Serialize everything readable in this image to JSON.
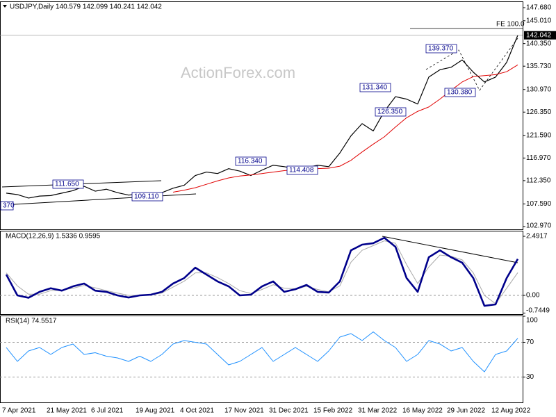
{
  "chart_data": [
    {
      "type": "line",
      "title": "USDJPY,Daily 140.579 142.099 140.241 142.042",
      "categories": [
        null,
        "7 Apr 2021",
        null,
        null,
        null,
        "21 May 2021",
        null,
        null,
        null,
        "6 Jul 2021",
        null,
        null,
        null,
        "19 Aug 2021",
        null,
        null,
        null,
        "4 Oct 2021",
        null,
        null,
        null,
        "17 Nov 2021",
        null,
        null,
        null,
        "31 Dec 2021",
        null,
        null,
        null,
        "15 Feb 2022",
        null,
        null,
        null,
        "31 Mar 2022",
        null,
        null,
        null,
        "16 May 2022",
        null,
        null,
        null,
        "29 Jun 2022",
        null,
        null,
        null,
        "12 Aug 2022",
        null
      ],
      "series": [
        {
          "color": "#000000",
          "values": [
            109.8,
            109.5,
            108.8,
            109.2,
            109.3,
            109.8,
            110.3,
            111.2,
            110.2,
            110.6,
            109.9,
            109.4,
            109.6,
            109.8,
            109.9,
            110.8,
            111.4,
            113.4,
            114.1,
            113.8,
            114.8,
            114.3,
            113.4,
            114.5,
            115.5,
            115.2,
            114.8,
            115.0,
            115.5,
            115.2,
            118.0,
            121.5,
            124.0,
            122.5,
            126.5,
            129.5,
            129.0,
            128.0,
            133.5,
            135.0,
            135.5,
            137.0,
            134.5,
            132.5,
            133.5,
            136.5,
            142.042
          ]
        },
        {
          "color": "#e00000",
          "values": [
            null,
            null,
            null,
            null,
            null,
            null,
            null,
            null,
            null,
            null,
            null,
            null,
            null,
            null,
            null,
            110.0,
            110.4,
            110.9,
            111.6,
            112.3,
            112.9,
            113.3,
            113.5,
            113.8,
            114.1,
            114.4,
            114.6,
            114.7,
            114.8,
            114.9,
            115.3,
            116.5,
            118.2,
            119.8,
            121.3,
            123.3,
            125.2,
            126.5,
            127.4,
            129.0,
            130.8,
            132.5,
            133.6,
            133.8,
            134.0,
            134.6,
            136.0
          ]
        }
      ],
      "ylim": [
        102.4,
        148.82
      ],
      "yticks": [
        {
          "value": 147.68,
          "label": "147.680"
        },
        {
          "value": 145.01,
          "label": "145.010"
        },
        {
          "value": 140.35,
          "label": "140.350"
        },
        {
          "value": 135.73,
          "label": "135.730"
        },
        {
          "value": 130.97,
          "label": "130.970"
        },
        {
          "value": 126.35,
          "label": "126.350"
        },
        {
          "value": 121.59,
          "label": "121.590"
        },
        {
          "value": 116.97,
          "label": "116.970"
        },
        {
          "value": 112.35,
          "label": "112.350"
        },
        {
          "value": 107.59,
          "label": "107.590"
        },
        {
          "value": 102.97,
          "label": "102.970"
        }
      ],
      "last_price": 142.042,
      "annotations": [
        "139.370",
        "131.340",
        "126.350",
        "130.380",
        "116.340",
        "111.650",
        "109.110",
        "114.408",
        "370"
      ],
      "fe_label": "FE 100.0",
      "watermark": "ActionForex.com"
    },
    {
      "type": "line",
      "title": "MACD(12,26,9) 1.5336 0.9595",
      "series": [
        {
          "color": "#a9a9a9",
          "values": [
            0.95,
            0.4,
            0.05,
            0.05,
            0.2,
            0.22,
            0.3,
            0.42,
            0.32,
            0.2,
            0.1,
            0,
            0,
            0.02,
            0.1,
            0.35,
            0.6,
            0.95,
            0.95,
            0.75,
            0.5,
            0.2,
            0.08,
            0.25,
            0.45,
            0.3,
            0.28,
            0.38,
            0.25,
            0.15,
            0.4,
            1.4,
            1.9,
            2.1,
            2.3,
            2.2,
            1.3,
            0.5,
            1.2,
            1.7,
            1.65,
            1.5,
            0.95,
            0.0,
            -0.35,
            0.3,
            0.9595
          ]
        },
        {
          "color": "#00008b",
          "values": [
            0.88,
            0.0,
            -0.1,
            0.15,
            0.3,
            0.2,
            0.38,
            0.5,
            0.2,
            0.15,
            0,
            -0.09,
            0,
            0.03,
            0.15,
            0.5,
            0.73,
            1.17,
            0.88,
            0.59,
            0.38,
            0,
            0.03,
            0.38,
            0.59,
            0.15,
            0.26,
            0.44,
            0.15,
            0.12,
            0.59,
            1.9,
            2.14,
            2.2,
            2.43,
            2.05,
            0.73,
            0.15,
            1.61,
            1.9,
            1.61,
            1.38,
            0.73,
            -0.44,
            -0.38,
            0.73,
            1.5336
          ]
        }
      ],
      "ylim": [
        -0.791,
        2.697
      ],
      "yticks": [
        2.4917,
        {
          "value": 0,
          "label": "0.00"
        },
        -0.7449
      ],
      "levels": [
        0
      ]
    },
    {
      "type": "line",
      "title": "RSI(14) 74.5517",
      "series": [
        {
          "color": "#1e90ff",
          "values": [
            64,
            48,
            60,
            64,
            56,
            64,
            68,
            56,
            58,
            54,
            52,
            48,
            54,
            48,
            56,
            68,
            72,
            70,
            68,
            56,
            44,
            48,
            56,
            64,
            48,
            56,
            64,
            56,
            48,
            60,
            76,
            80,
            72,
            82,
            72,
            64,
            48,
            56,
            72,
            68,
            60,
            64,
            48,
            36,
            56,
            60,
            74.5517
          ]
        }
      ],
      "ylim": [
        0,
        100
      ],
      "yticks": [
        100,
        70,
        30
      ],
      "levels": [
        70,
        30
      ]
    }
  ]
}
